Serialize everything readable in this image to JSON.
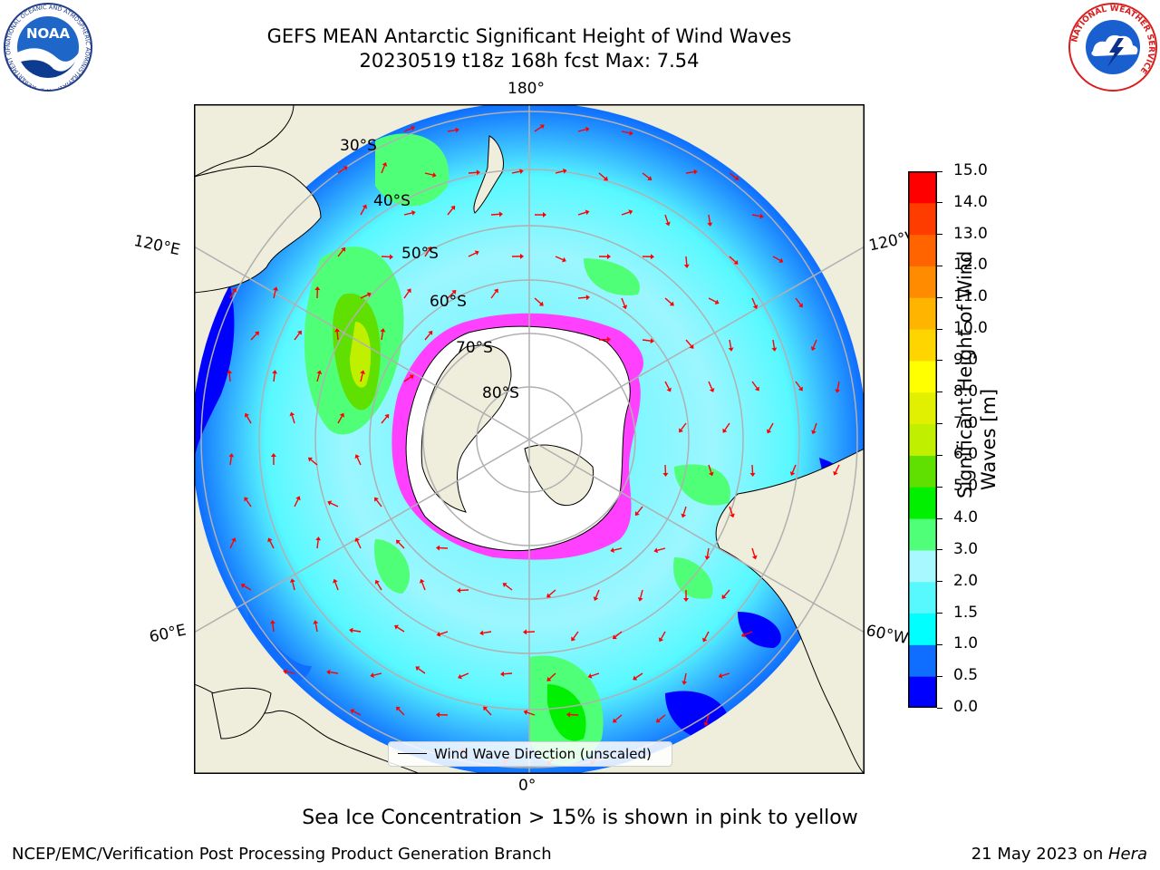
{
  "header": {
    "title_line1": "GEFS MEAN Antarctic Significant Height of Wind Waves",
    "title_line2": "20230519 t18z 168h fcst   Max: 7.54"
  },
  "logos": {
    "left_icon": "noaa-logo-icon",
    "left_text": "NOAA",
    "left_ring_text": "NATIONAL OCEANIC AND ATMOSPHERIC ADMINISTRATION · U.S. DEPARTMENT OF COMMERCE",
    "right_icon": "nws-logo-icon",
    "right_ring_text": "NATIONAL WEATHER SERVICE"
  },
  "map": {
    "projection": "south-polar-stereographic",
    "longitude_labels": {
      "top": "180°",
      "bottom": "0°",
      "upper_left": "120°E",
      "lower_left": "60°E",
      "upper_right": "120°W",
      "lower_right": "60°W"
    },
    "latitude_labels": [
      "30°S",
      "40°S",
      "50°S",
      "60°S",
      "70°S",
      "80°S"
    ],
    "colors": {
      "land": "#efeddb",
      "antarctic": "#ffffff",
      "sea_ice": "#ff40ff",
      "grid": "#b0b0b0",
      "arrow": "#ff0000"
    },
    "legend": {
      "label": "Wind Wave Direction (unscaled)"
    }
  },
  "colorbar": {
    "title_line1": "Significant Height of Wind",
    "title_line2": "Waves [m]",
    "ticks": [
      "0.0",
      "0.5",
      "1.0",
      "1.5",
      "2.0",
      "3.0",
      "4.0",
      "5.0",
      "6.0",
      "7.0",
      "8.0",
      "9.0",
      "10.0",
      "11.0",
      "12.0",
      "13.0",
      "14.0",
      "15.0"
    ],
    "colors": [
      "#0000ff",
      "#0f6eff",
      "#00ffff",
      "#58f8ff",
      "#a8f8ff",
      "#50ff78",
      "#00f000",
      "#60e000",
      "#c0f000",
      "#e0f000",
      "#ffff00",
      "#ffd500",
      "#ffb500",
      "#ff8c00",
      "#ff6400",
      "#ff3c00",
      "#ff0000"
    ]
  },
  "footer": {
    "note": "Sea Ice Concentration > 15% is shown in pink to yellow",
    "credit_left": "NCEP/EMC/Verification Post Processing Product Generation Branch",
    "credit_right_date": "21 May 2023 on ",
    "credit_right_host": "Hera"
  }
}
